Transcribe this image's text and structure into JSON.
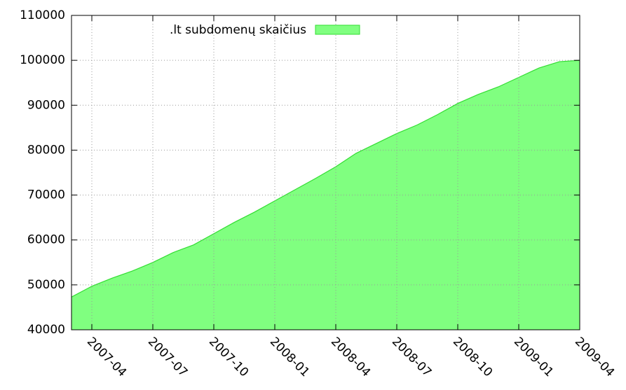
{
  "chart_data": {
    "type": "area",
    "x": [
      "2007-03",
      "2007-04",
      "2007-05",
      "2007-06",
      "2007-07",
      "2007-08",
      "2007-09",
      "2007-10",
      "2007-11",
      "2007-12",
      "2008-01",
      "2008-02",
      "2008-03",
      "2008-04",
      "2008-05",
      "2008-06",
      "2008-07",
      "2008-08",
      "2008-09",
      "2008-10",
      "2008-11",
      "2008-12",
      "2009-01",
      "2009-02",
      "2009-03",
      "2009-04"
    ],
    "series": [
      {
        "name": ".lt subdomenų skaičius",
        "color": "#80ff80",
        "values": [
          47300,
          49700,
          51500,
          53100,
          55000,
          57200,
          58900,
          61400,
          63900,
          66200,
          68700,
          71200,
          73700,
          76300,
          79300,
          81500,
          83700,
          85600,
          87900,
          90400,
          92400,
          94100,
          96200,
          98300,
          99700,
          100000
        ]
      }
    ],
    "xlim": [
      "2007-03",
      "2009-04"
    ],
    "xticks": [
      "2007-04",
      "2007-07",
      "2007-10",
      "2008-01",
      "2008-04",
      "2008-07",
      "2008-10",
      "2009-01",
      "2009-04"
    ],
    "ylim": [
      40000,
      110000
    ],
    "yticks": [
      40000,
      50000,
      60000,
      70000,
      80000,
      90000,
      100000,
      110000
    ],
    "grid": true,
    "legend": "top"
  }
}
